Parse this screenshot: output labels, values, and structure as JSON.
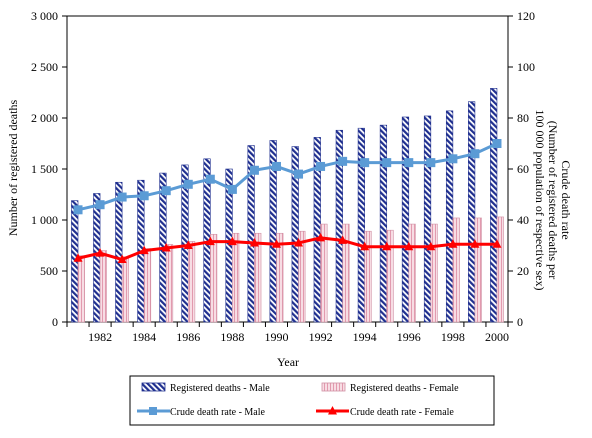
{
  "chart_data": {
    "type": "bar",
    "title": "",
    "xlabel": "Year",
    "ylabel": "Number of registered deaths",
    "y2label": [
      "Crude death rate",
      "(Number of registered deaths per",
      "100 000 population of respective sex)"
    ],
    "x": [
      1981,
      1982,
      1983,
      1984,
      1985,
      1986,
      1987,
      1988,
      1989,
      1990,
      1991,
      1992,
      1993,
      1994,
      1995,
      1996,
      1997,
      1998,
      1999,
      2000
    ],
    "x_tick_labels": [
      "1982",
      "1984",
      "1986",
      "1988",
      "1990",
      "1992",
      "1994",
      "1996",
      "1998",
      "2000"
    ],
    "x_tick_values": [
      1982,
      1984,
      1986,
      1988,
      1990,
      1992,
      1994,
      1996,
      1998,
      2000
    ],
    "y_ticks": [
      "0",
      "500",
      "1 000",
      "1 500",
      "2 000",
      "2 500",
      "3 000"
    ],
    "y_tick_values": [
      0,
      500,
      1000,
      1500,
      2000,
      2500,
      3000
    ],
    "ylim": [
      0,
      3000
    ],
    "y2_ticks": [
      "0",
      "20",
      "40",
      "60",
      "80",
      "100",
      "120"
    ],
    "y2_tick_values": [
      0,
      20,
      40,
      60,
      80,
      100,
      120
    ],
    "y2lim": [
      0,
      120
    ],
    "grid": false,
    "legend_position": "bottom",
    "series": [
      {
        "name": "Registered deaths - Male",
        "kind": "bar",
        "axis": "left",
        "color": "#1f2f8f",
        "values": [
          1190,
          1260,
          1370,
          1390,
          1460,
          1540,
          1600,
          1500,
          1730,
          1780,
          1720,
          1810,
          1880,
          1900,
          1930,
          2010,
          2020,
          2070,
          2160,
          2290
        ]
      },
      {
        "name": "Registered deaths - Female",
        "kind": "bar",
        "axis": "left",
        "color": "#e6a8b8",
        "values": [
          650,
          700,
          640,
          720,
          760,
          790,
          860,
          870,
          870,
          870,
          890,
          960,
          960,
          890,
          900,
          960,
          960,
          1020,
          1020,
          1030
        ]
      },
      {
        "name": "Crude death rate - Male",
        "kind": "line",
        "axis": "right",
        "color": "#5b9bd5",
        "values": [
          44,
          46,
          49,
          49.5,
          51.5,
          54,
          56,
          52,
          59.5,
          61,
          58,
          61,
          63,
          62.5,
          62.5,
          62.5,
          62.5,
          64,
          66,
          70
        ]
      },
      {
        "name": "Crude death rate - Female",
        "kind": "line",
        "axis": "right",
        "color": "#ff0000",
        "values": [
          25,
          27,
          24.5,
          28,
          29,
          30,
          31.5,
          31.5,
          31,
          30.5,
          31,
          33,
          32,
          29.5,
          29.5,
          29.5,
          29.5,
          30.5,
          30.5,
          30.5
        ]
      }
    ]
  }
}
